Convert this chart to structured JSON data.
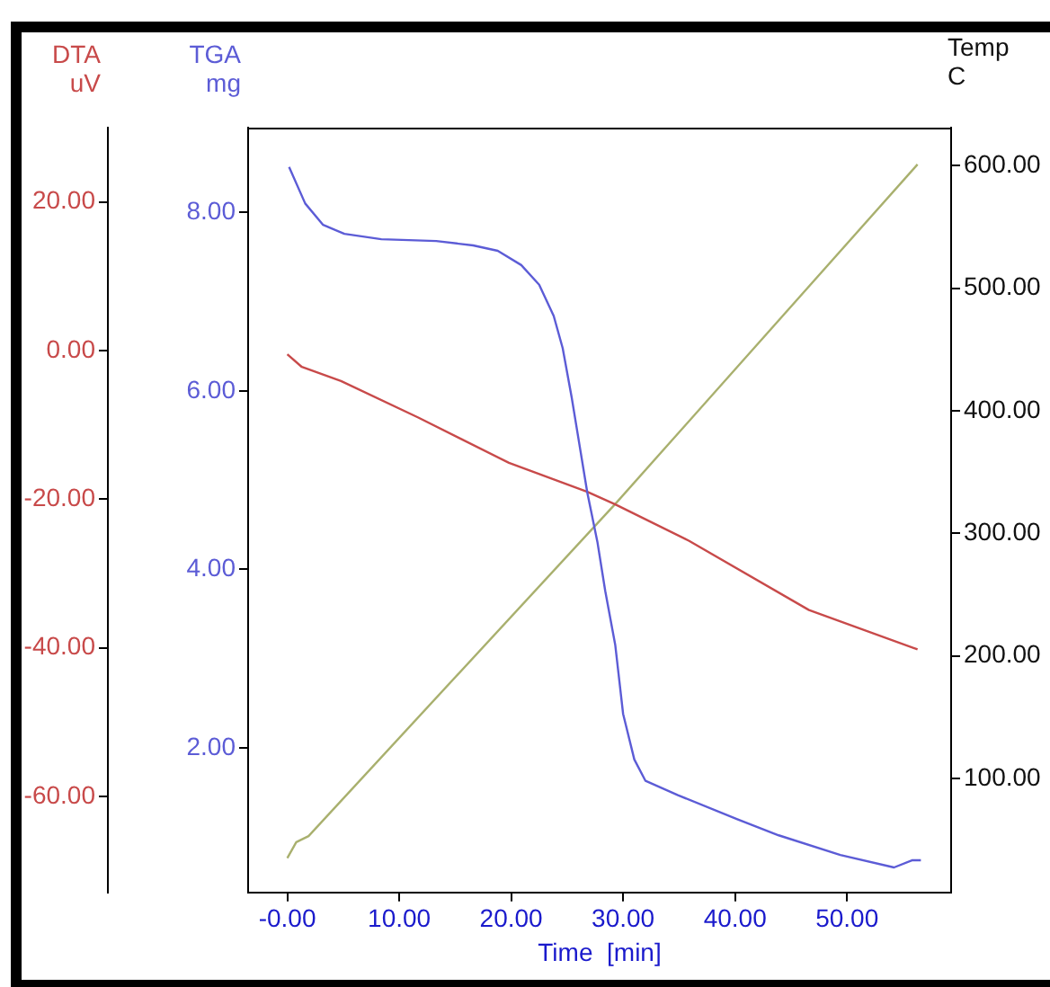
{
  "chart_data": {
    "type": "line",
    "xlabel": "Time  [min]",
    "ylabel": "TGA\nmg",
    "y2label": "Temp\nC",
    "y3label": "DTA\nuV",
    "xlim": [
      -3.5,
      59.3
    ],
    "xticks": [
      {
        "value": 0,
        "label": "-0.00"
      },
      {
        "value": 10,
        "label": "10.00"
      },
      {
        "value": 20,
        "label": "20.00"
      },
      {
        "value": 30,
        "label": "30.00"
      },
      {
        "value": 40,
        "label": "40.00"
      },
      {
        "value": 50,
        "label": "50.00"
      }
    ],
    "ylim": [
      0.38,
      8.95
    ],
    "yticks": [
      {
        "value": 2,
        "label": "2.00"
      },
      {
        "value": 4,
        "label": "4.00"
      },
      {
        "value": 6,
        "label": "6.00"
      },
      {
        "value": 8,
        "label": "8.00"
      }
    ],
    "y2lim": [
      7,
      631
    ],
    "y2ticks": [
      {
        "value": 100,
        "label": "100.00"
      },
      {
        "value": 200,
        "label": "200.00"
      },
      {
        "value": 300,
        "label": "300.00"
      },
      {
        "value": 400,
        "label": "400.00"
      },
      {
        "value": 500,
        "label": "500.00"
      },
      {
        "value": 600,
        "label": "600.00"
      }
    ],
    "y3lim": [
      -72.9,
      30
    ],
    "y3ticks": [
      {
        "value": -60,
        "label": "-60.00"
      },
      {
        "value": -40,
        "label": "-40.00"
      },
      {
        "value": -20,
        "label": "-20.00"
      },
      {
        "value": 0,
        "label": "0.00"
      },
      {
        "value": 20,
        "label": "20.00"
      }
    ],
    "grid": false,
    "legend": false,
    "marker": "none",
    "line_style": "solid",
    "series": [
      {
        "color": "#5c5cd6",
        "axis": "y",
        "x": [
          0.16,
          1.6,
          3.2,
          5.1,
          8.4,
          13.3,
          16.6,
          18.8,
          20.9,
          22.5,
          23.8,
          24.6,
          25.4,
          26.2,
          26.8,
          27.7,
          28.4,
          29.3,
          30,
          31,
          32,
          34.9,
          40.2,
          43.9,
          49.4,
          54.2,
          55.8,
          56.6
        ],
        "values": [
          8.51,
          8.1,
          7.86,
          7.76,
          7.7,
          7.68,
          7.63,
          7.57,
          7.41,
          7.19,
          6.84,
          6.48,
          5.93,
          5.32,
          4.86,
          4.31,
          3.76,
          3.15,
          2.38,
          1.87,
          1.63,
          1.47,
          1.2,
          1.02,
          0.8,
          0.66,
          0.74,
          0.74
        ]
      },
      {
        "color": "#c84a4a",
        "axis": "y3",
        "x": [
          0,
          1.3,
          4.8,
          11.7,
          19.8,
          26.8,
          29.3,
          35.9,
          46.6,
          56.3
        ],
        "values": [
          -0.5,
          -2.2,
          -4.1,
          -9.0,
          -15.1,
          -19.0,
          -20.7,
          -25.6,
          -34.9,
          -40.2
        ]
      },
      {
        "color": "#a9b06e",
        "axis": "y2",
        "x": [
          0,
          0.8,
          1.9,
          29.3,
          56.3
        ],
        "values": [
          35,
          48,
          53,
          324,
          601
        ]
      }
    ]
  }
}
